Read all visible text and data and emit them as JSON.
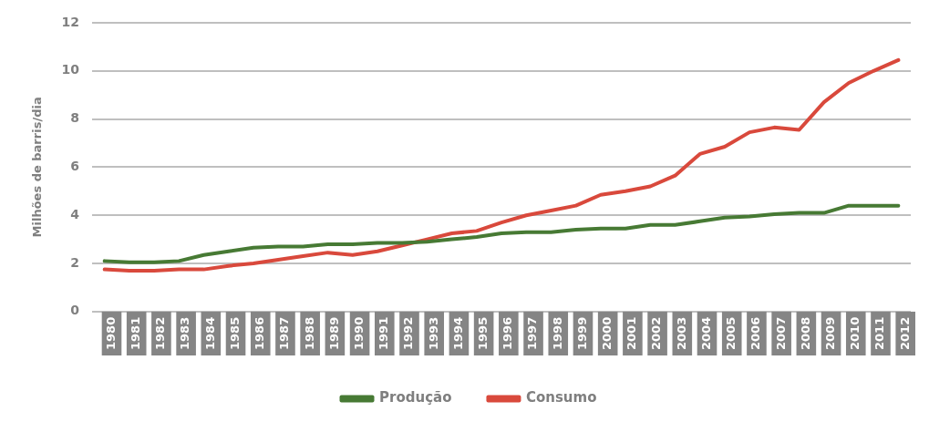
{
  "chart_data": {
    "type": "line",
    "ylabel": "Milhões de barris/dia",
    "categories": [
      "1980",
      "1981",
      "1982",
      "1983",
      "1984",
      "1985",
      "1986",
      "1987",
      "1988",
      "1989",
      "1990",
      "1991",
      "1992",
      "1993",
      "1994",
      "1995",
      "1996",
      "1997",
      "1998",
      "1999",
      "2000",
      "2001",
      "2002",
      "2003",
      "2004",
      "2005",
      "2006",
      "2007",
      "2008",
      "2009",
      "2010",
      "2011",
      "2012"
    ],
    "series": [
      {
        "name": "Produção",
        "color": "#477a34",
        "values": [
          2.1,
          2.05,
          2.05,
          2.1,
          2.35,
          2.5,
          2.65,
          2.7,
          2.7,
          2.8,
          2.8,
          2.85,
          2.85,
          2.9,
          3.0,
          3.1,
          3.25,
          3.3,
          3.3,
          3.4,
          3.45,
          3.45,
          3.6,
          3.6,
          3.75,
          3.9,
          3.95,
          4.05,
          4.1,
          4.1,
          4.4,
          4.4,
          4.4
        ]
      },
      {
        "name": "Consumo",
        "color": "#d9493c",
        "values": [
          1.75,
          1.7,
          1.7,
          1.75,
          1.75,
          1.9,
          2.0,
          2.15,
          2.3,
          2.45,
          2.35,
          2.5,
          2.75,
          3.0,
          3.25,
          3.35,
          3.7,
          4.0,
          4.2,
          4.4,
          4.85,
          5.0,
          5.2,
          5.65,
          6.55,
          6.85,
          7.45,
          7.65,
          7.55,
          8.7,
          9.5,
          10.0,
          10.45
        ]
      }
    ],
    "ylim": [
      0,
      12
    ],
    "yticks": [
      0,
      2,
      4,
      6,
      8,
      10,
      12
    ],
    "grid": "y",
    "legend": "bottom",
    "marker": "none",
    "line_style": "solid"
  }
}
